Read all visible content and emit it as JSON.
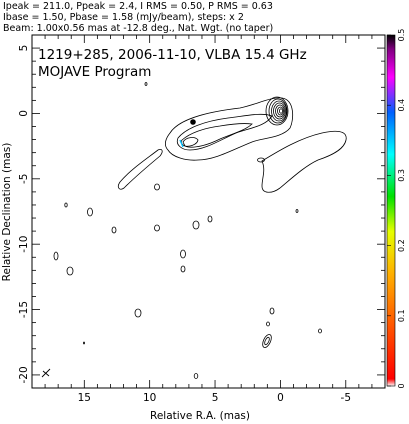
{
  "header": {
    "line1": "Ipeak = 211.0, Ppeak = 2.4, I RMS = 0.50, P RMS = 0.63",
    "line2": "Ibase = 1.50, Pbase = 1.58 (mJy/beam), steps: x 2",
    "line3": "Beam: 1.00x0.56 mas at -12.8 deg., Nat. Wgt. (no taper)"
  },
  "panel": {
    "title": "1219+285, 2006-11-10, VLBA 15.4 GHz",
    "subtitle": "MOJAVE Program"
  },
  "chart_data": {
    "type": "contour",
    "xlabel": "Relative R.A. (mas)",
    "ylabel": "Relative Declination (mas)",
    "xlim": [
      19,
      -8
    ],
    "ylim": [
      -21,
      6
    ],
    "xticks": [
      "15",
      "10",
      "5",
      "0",
      "-5"
    ],
    "xtick_values": [
      15,
      10,
      5,
      0,
      -5
    ],
    "yticks": [
      "5",
      "0",
      "-5",
      "-10",
      "-15",
      "-20"
    ],
    "ytick_values": [
      5,
      0,
      -5,
      -10,
      -15,
      -20
    ],
    "colorbar": {
      "min": 0,
      "max": 0.5,
      "ticks": [
        "0",
        "0.1",
        "0.2",
        "0.3",
        "0.4",
        "0.5"
      ],
      "tick_values": [
        0,
        0.1,
        0.2,
        0.3,
        0.4,
        0.5
      ],
      "colors": [
        "#ffffff",
        "#ff0000",
        "#ff8800",
        "#ffff00",
        "#00dd00",
        "#00ffff",
        "#0000ff",
        "#ff00ff",
        "#000000"
      ]
    },
    "core": {
      "x": -0.3,
      "y": 0.8
    },
    "contour_color": "#000000",
    "polarization_colors": [
      "#00bfff",
      "#000000"
    ]
  }
}
